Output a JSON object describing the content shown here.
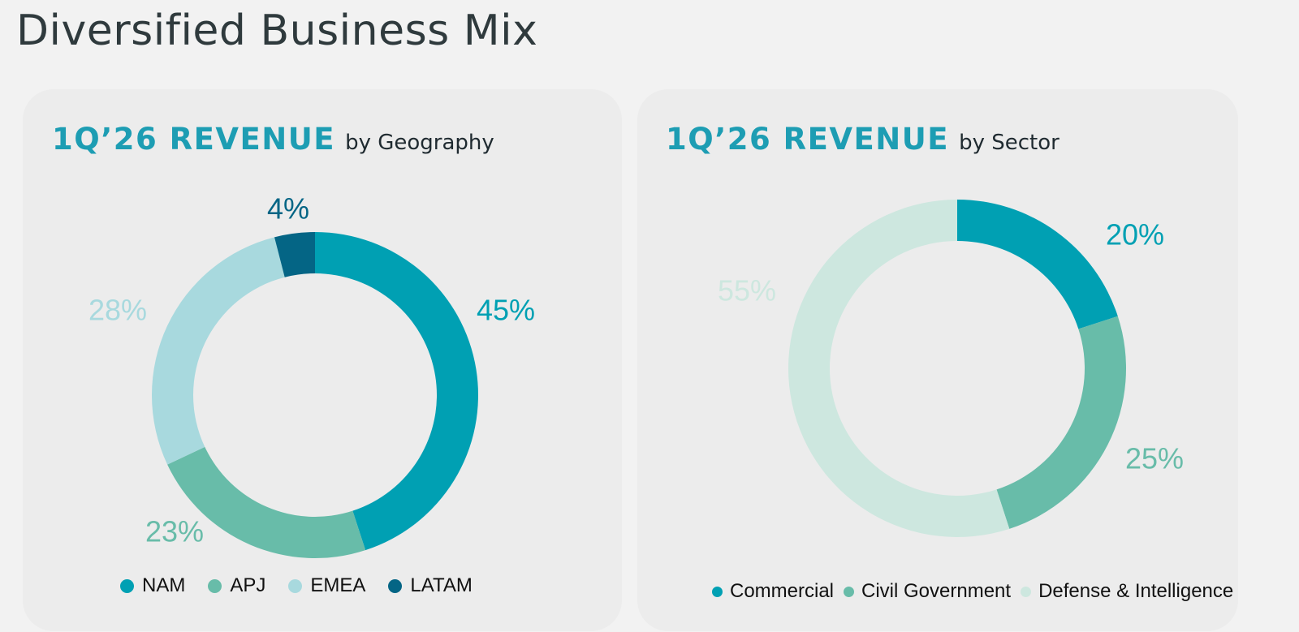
{
  "page": {
    "title": "Diversified Business Mix"
  },
  "charts": {
    "geography": {
      "heading_strong": "1Q’26 REVENUE",
      "heading_sub": "by Geography"
    },
    "sector": {
      "heading_strong": "1Q’26 REVENUE",
      "heading_sub": "by Sector"
    }
  },
  "chart_data": [
    {
      "type": "pie",
      "variant": "donut",
      "title": "1Q’26 REVENUE by Geography",
      "start_angle_deg": 0,
      "direction": "clockwise",
      "legend_position": "bottom",
      "slices": [
        {
          "name": "NAM",
          "value": 45,
          "label": "45%",
          "color": "#00a0b3"
        },
        {
          "name": "APJ",
          "value": 23,
          "label": "23%",
          "color": "#68bca9"
        },
        {
          "name": "EMEA",
          "value": 28,
          "label": "28%",
          "color": "#a8d9de"
        },
        {
          "name": "LATAM",
          "value": 4,
          "label": "4%",
          "color": "#046585"
        }
      ]
    },
    {
      "type": "pie",
      "variant": "donut",
      "title": "1Q’26 REVENUE by Sector",
      "start_angle_deg": 0,
      "direction": "clockwise",
      "legend_position": "bottom",
      "slices": [
        {
          "name": "Commercial",
          "value": 20,
          "label": "20%",
          "color": "#00a0b3"
        },
        {
          "name": "Civil Government",
          "value": 25,
          "label": "25%",
          "color": "#68bca9"
        },
        {
          "name": "Defense & Intelligence",
          "value": 55,
          "label": "55%",
          "color": "#cde7df"
        }
      ]
    }
  ],
  "style": {
    "background": "#f2f2f2",
    "panel_background": "#ececec",
    "title_color": "#2f3a3d",
    "heading_accent": "#1d9db3",
    "legend_text": "#111111"
  }
}
